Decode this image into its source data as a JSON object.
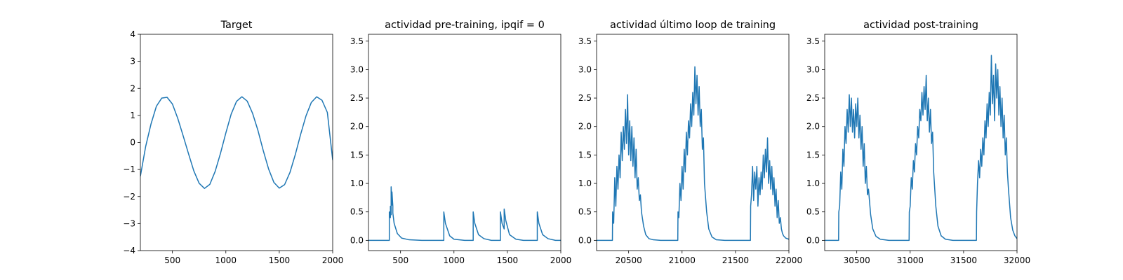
{
  "chart_data": [
    {
      "type": "line",
      "title": "Target",
      "xlabel": "",
      "ylabel": "",
      "xlim": [
        200,
        2000
      ],
      "ylim": [
        -4,
        4
      ],
      "xticks": [
        500,
        1000,
        1500,
        2000
      ],
      "xtick_labels": [
        "500",
        "1000",
        "1500",
        "2000"
      ],
      "yticks": [
        -4,
        -3,
        -2,
        -1,
        0,
        1,
        2,
        3,
        4
      ],
      "ytick_labels": [
        "−4",
        "−3",
        "−2",
        "−1",
        "0",
        "1",
        "2",
        "3",
        "4"
      ],
      "grid": false,
      "legend": "none",
      "series": [
        {
          "color": "#1f77b4",
          "x": [
            200,
            250,
            300,
            350,
            400,
            450,
            500,
            550,
            600,
            650,
            700,
            750,
            800,
            850,
            900,
            950,
            1000,
            1050,
            1100,
            1150,
            1200,
            1250,
            1300,
            1350,
            1400,
            1450,
            1500,
            1550,
            1600,
            1650,
            1700,
            1750,
            1800,
            1850,
            1900,
            1950,
            2000
          ],
          "y": [
            -1.25,
            -0.14,
            0.69,
            1.34,
            1.64,
            1.67,
            1.42,
            0.89,
            0.25,
            -0.41,
            -1.05,
            -1.51,
            -1.7,
            -1.55,
            -1.07,
            -0.4,
            0.35,
            1.05,
            1.52,
            1.69,
            1.53,
            1.08,
            0.45,
            -0.3,
            -0.98,
            -1.48,
            -1.69,
            -1.56,
            -1.11,
            -0.45,
            0.3,
            0.98,
            1.48,
            1.69,
            1.56,
            1.11,
            -0.65
          ]
        }
      ]
    },
    {
      "type": "line",
      "title": "actividad pre-training, ipqif = 0",
      "xlabel": "",
      "ylabel": "",
      "xlim": [
        200,
        2000
      ],
      "ylim": [
        -0.18,
        3.62
      ],
      "xticks": [
        500,
        1000,
        1500,
        2000
      ],
      "xtick_labels": [
        "500",
        "1000",
        "1500",
        "2000"
      ],
      "yticks": [
        0,
        0.5,
        1,
        1.5,
        2,
        2.5,
        3,
        3.5
      ],
      "ytick_labels": [
        "0.0",
        "0.5",
        "1.0",
        "1.5",
        "2.0",
        "2.5",
        "3.0",
        "3.5"
      ],
      "grid": false,
      "legend": "none",
      "series": [
        {
          "color": "#1f77b4",
          "x": [
            200,
            395,
            395,
            405,
            405,
            412,
            412,
            420,
            420,
            428,
            428,
            440,
            470,
            510,
            580,
            700,
            905,
            905,
            920,
            960,
            1000,
            1100,
            1180,
            1180,
            1195,
            1230,
            1280,
            1350,
            1435,
            1435,
            1450,
            1470,
            1470,
            1485,
            1520,
            1580,
            1650,
            1780,
            1780,
            1795,
            1830,
            1880,
            1950,
            2000
          ],
          "y": [
            0,
            0,
            0.5,
            0.4,
            0.6,
            0.45,
            0.94,
            0.62,
            0.85,
            0.6,
            0.48,
            0.3,
            0.12,
            0.04,
            0.01,
            0,
            0,
            0.5,
            0.3,
            0.08,
            0.02,
            0,
            0,
            0.5,
            0.3,
            0.1,
            0.03,
            0,
            0,
            0.5,
            0.3,
            0.2,
            0.55,
            0.35,
            0.1,
            0.02,
            0,
            0,
            0.5,
            0.3,
            0.1,
            0.03,
            0,
            0
          ]
        }
      ]
    },
    {
      "type": "line",
      "title": "actividad último loop de training",
      "xlabel": "",
      "ylabel": "",
      "xlim": [
        20200,
        22000
      ],
      "ylim": [
        -0.18,
        3.62
      ],
      "xticks": [
        20500,
        21000,
        21500,
        22000
      ],
      "xtick_labels": [
        "20500",
        "21000",
        "21500",
        "22000"
      ],
      "yticks": [
        0,
        0.5,
        1,
        1.5,
        2,
        2.5,
        3,
        3.5
      ],
      "ytick_labels": [
        "0.0",
        "0.5",
        "1.0",
        "1.5",
        "2.0",
        "2.5",
        "3.0",
        "3.5"
      ],
      "grid": false,
      "legend": "none",
      "series": [
        {
          "color": "#1f77b4",
          "x": [
            20200,
            20348,
            20350,
            20360,
            20370,
            20380,
            20390,
            20400,
            20410,
            20420,
            20430,
            20440,
            20450,
            20460,
            20470,
            20480,
            20490,
            20500,
            20510,
            20520,
            20530,
            20540,
            20550,
            20560,
            20570,
            20580,
            20590,
            20600,
            20610,
            20620,
            20640,
            20660,
            20690,
            20730,
            20800,
            20960,
            20962,
            20970,
            20980,
            20990,
            21000,
            21010,
            21020,
            21030,
            21040,
            21050,
            21060,
            21070,
            21080,
            21090,
            21100,
            21110,
            21120,
            21130,
            21140,
            21150,
            21160,
            21170,
            21180,
            21190,
            21200,
            21210,
            21230,
            21250,
            21280,
            21320,
            21400,
            21640,
            21642,
            21650,
            21660,
            21670,
            21680,
            21690,
            21700,
            21710,
            21720,
            21730,
            21740,
            21750,
            21760,
            21770,
            21780,
            21790,
            21800,
            21810,
            21820,
            21830,
            21840,
            21850,
            21860,
            21870,
            21880,
            21890,
            21900,
            21910,
            21920,
            21930,
            21940,
            21950,
            21970,
            22000
          ],
          "y": [
            0,
            0,
            0.5,
            0.3,
            1.1,
            0.6,
            1.3,
            0.9,
            1.5,
            1.1,
            1.9,
            1.4,
            2.0,
            1.6,
            2.3,
            1.7,
            2.56,
            1.5,
            2.1,
            1.4,
            2.0,
            1.3,
            1.8,
            1.1,
            1.6,
            0.9,
            1.1,
            0.7,
            0.8,
            0.5,
            0.25,
            0.1,
            0.03,
            0.01,
            0,
            0,
            0.5,
            0.4,
            1.0,
            0.7,
            1.3,
            0.9,
            1.6,
            1.2,
            1.9,
            1.5,
            2.1,
            1.8,
            2.4,
            2.0,
            2.6,
            2.2,
            3.05,
            2.4,
            2.9,
            2.2,
            2.7,
            2.0,
            2.3,
            1.6,
            1.8,
            1.0,
            0.5,
            0.2,
            0.06,
            0.01,
            0,
            0,
            0.6,
            0.8,
            1.3,
            0.7,
            1.2,
            0.9,
            1.3,
            0.6,
            1.1,
            0.8,
            1.2,
            0.9,
            1.5,
            1.1,
            1.6,
            1.2,
            1.8,
            1.0,
            1.4,
            0.9,
            1.3,
            0.8,
            1.1,
            0.6,
            0.9,
            0.4,
            0.7,
            0.3,
            0.4,
            0.2,
            0.12,
            0.08,
            0.04,
            0.02
          ]
        }
      ]
    },
    {
      "type": "line",
      "title": "actividad post-training",
      "xlabel": "",
      "ylabel": "",
      "xlim": [
        30200,
        32000
      ],
      "ylim": [
        -0.18,
        3.62
      ],
      "xticks": [
        30500,
        31000,
        31500,
        32000
      ],
      "xtick_labels": [
        "30500",
        "31000",
        "31500",
        "32000"
      ],
      "yticks": [
        0,
        0.5,
        1,
        1.5,
        2,
        2.5,
        3,
        3.5
      ],
      "ytick_labels": [
        "0.0",
        "0.5",
        "1.0",
        "1.5",
        "2.0",
        "2.5",
        "3.0",
        "3.5"
      ],
      "grid": false,
      "legend": "none",
      "series": [
        {
          "color": "#1f77b4",
          "x": [
            30200,
            30330,
            30332,
            30340,
            30350,
            30360,
            30370,
            30380,
            30390,
            30400,
            30410,
            30420,
            30430,
            30440,
            30450,
            30460,
            30470,
            30480,
            30490,
            30500,
            30510,
            30520,
            30530,
            30540,
            30550,
            30560,
            30570,
            30580,
            30590,
            30600,
            30610,
            30630,
            30650,
            30680,
            30720,
            30800,
            30990,
            30992,
            31000,
            31010,
            31020,
            31030,
            31040,
            31050,
            31060,
            31070,
            31080,
            31090,
            31100,
            31110,
            31120,
            31130,
            31140,
            31150,
            31160,
            31170,
            31180,
            31190,
            31200,
            31210,
            31220,
            31240,
            31260,
            31290,
            31330,
            31400,
            31620,
            31622,
            31630,
            31640,
            31650,
            31660,
            31670,
            31680,
            31690,
            31700,
            31710,
            31720,
            31730,
            31740,
            31750,
            31760,
            31770,
            31780,
            31790,
            31800,
            31810,
            31820,
            31830,
            31840,
            31850,
            31860,
            31870,
            31880,
            31890,
            31900,
            31910,
            31920,
            31940,
            31960,
            31980,
            32000
          ],
          "y": [
            0,
            0,
            0.5,
            0.6,
            1.2,
            0.9,
            1.6,
            1.3,
            2.0,
            1.7,
            2.3,
            1.9,
            2.56,
            2.0,
            2.5,
            1.9,
            2.3,
            1.8,
            2.4,
            2.0,
            2.5,
            1.8,
            2.2,
            1.6,
            2.0,
            1.3,
            1.7,
            1.0,
            1.3,
            0.8,
            0.9,
            0.45,
            0.2,
            0.07,
            0.02,
            0,
            0,
            0.5,
            0.6,
            1.1,
            0.9,
            1.4,
            1.2,
            1.7,
            1.5,
            2.0,
            1.8,
            2.3,
            2.1,
            2.6,
            2.2,
            2.7,
            2.3,
            2.9,
            2.1,
            2.5,
            1.9,
            2.3,
            1.7,
            1.9,
            1.2,
            0.6,
            0.25,
            0.08,
            0.02,
            0,
            0,
            0.5,
            1.0,
            1.4,
            1.1,
            1.6,
            1.3,
            1.8,
            1.5,
            2.1,
            1.8,
            2.4,
            2.0,
            2.6,
            2.2,
            3.25,
            2.4,
            2.9,
            2.1,
            3.1,
            2.5,
            3.0,
            2.2,
            2.7,
            2.0,
            2.5,
            1.8,
            2.2,
            1.5,
            1.8,
            1.2,
            0.9,
            0.4,
            0.18,
            0.08,
            0.03
          ]
        }
      ]
    }
  ]
}
